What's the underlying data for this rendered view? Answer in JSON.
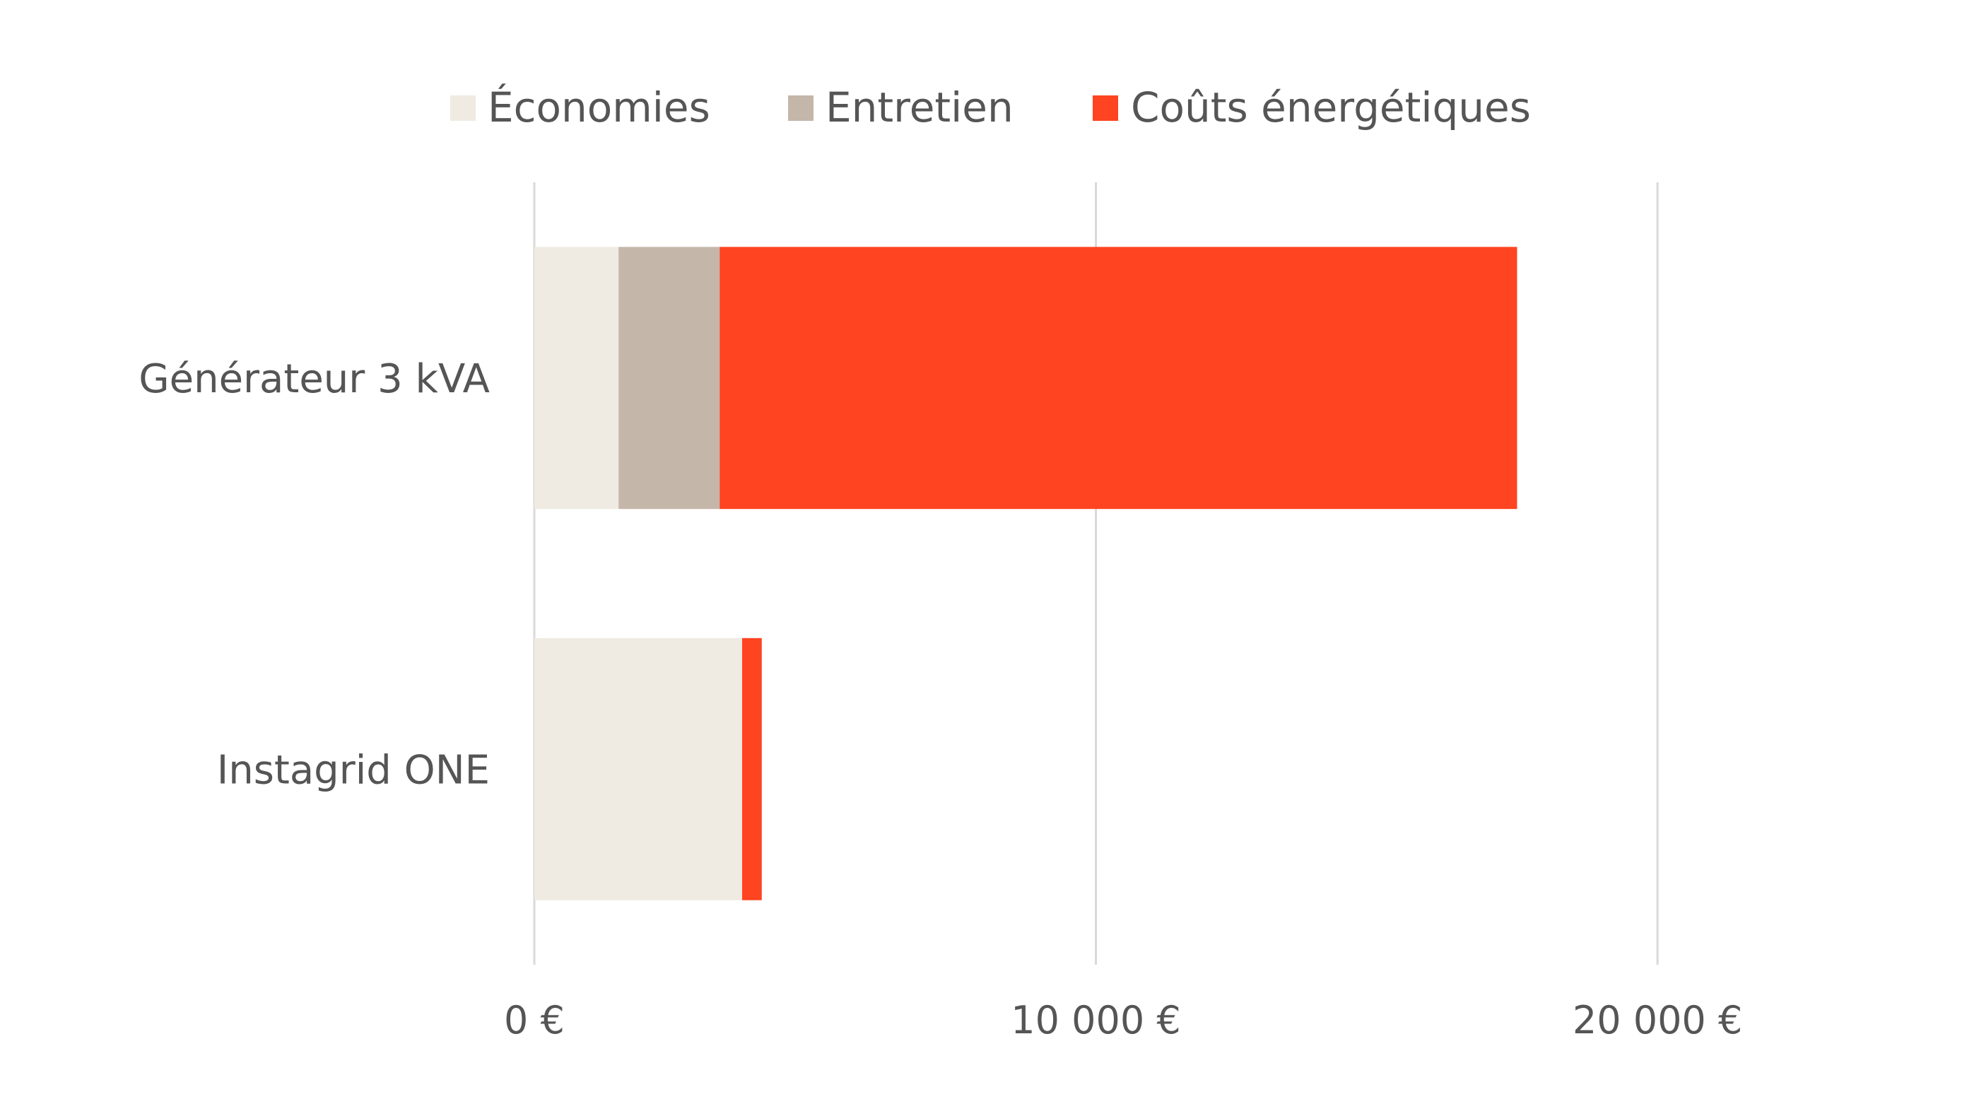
{
  "chart_data": {
    "type": "bar",
    "orientation": "horizontal",
    "stacked": true,
    "categories": [
      "Générateur 3 kVA",
      "Instagrid ONE"
    ],
    "series": [
      {
        "name": "Économies",
        "color": "#efebe3",
        "values": [
          1500,
          3700
        ]
      },
      {
        "name": "Entretien",
        "color": "#c5b6aa",
        "values": [
          1800,
          0
        ]
      },
      {
        "name": "Coûts énergétiques",
        "color": "#ff4421",
        "values": [
          14200,
          350
        ]
      }
    ],
    "xaxis": {
      "min": 0,
      "max": 22000,
      "ticks": [
        0,
        10000,
        20000
      ],
      "tick_labels": [
        "0 €",
        "10 000 €",
        "20 000 €"
      ]
    },
    "title": "",
    "xlabel": "",
    "ylabel": "",
    "grid": true,
    "legend_position": "top-center"
  }
}
